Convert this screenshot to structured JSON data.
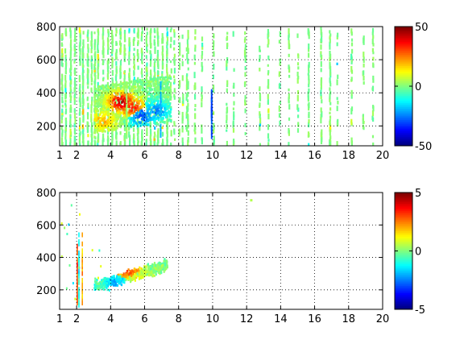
{
  "chart_data": [
    {
      "type": "heatmap",
      "title": "",
      "xlabel": "",
      "ylabel": "",
      "xlim": [
        1,
        20
      ],
      "ylim": [
        80,
        800
      ],
      "xticks": [
        "1",
        "2",
        "4",
        "6",
        "8",
        "10",
        "12",
        "14",
        "16",
        "18",
        "20"
      ],
      "xtick_values": [
        1,
        2,
        4,
        6,
        8,
        10,
        12,
        14,
        16,
        18,
        20
      ],
      "yticks": [
        "200",
        "400",
        "600",
        "800"
      ],
      "ytick_values": [
        200,
        400,
        600,
        800
      ],
      "grid": true,
      "colormap": "jet",
      "colorbar": {
        "min": -50,
        "max": 50,
        "ticks": [
          "50",
          "0",
          "-50"
        ],
        "tick_values": [
          50,
          0,
          -50
        ]
      },
      "features": [
        {
          "x": 4.6,
          "y": 350,
          "value": 45
        },
        {
          "x": 5.2,
          "y": 320,
          "value": 35
        },
        {
          "x": 5.8,
          "y": 265,
          "value": -30
        },
        {
          "x": 6.6,
          "y": 300,
          "value": -25
        },
        {
          "x": 3.5,
          "y": 240,
          "value": 20
        }
      ]
    },
    {
      "type": "heatmap",
      "title": "",
      "xlabel": "",
      "ylabel": "",
      "xlim": [
        1,
        20
      ],
      "ylim": [
        80,
        800
      ],
      "xticks": [
        "1",
        "2",
        "4",
        "6",
        "8",
        "10",
        "12",
        "14",
        "16",
        "18",
        "20"
      ],
      "xtick_values": [
        1,
        2,
        4,
        6,
        8,
        10,
        12,
        14,
        16,
        18,
        20
      ],
      "yticks": [
        "200",
        "400",
        "600",
        "800"
      ],
      "ytick_values": [
        200,
        400,
        600,
        800
      ],
      "grid": true,
      "colormap": "jet",
      "colorbar": {
        "min": -5,
        "max": 5,
        "ticks": [
          "5",
          "0",
          "-5"
        ],
        "tick_values": [
          5,
          0,
          -5
        ]
      },
      "features": [
        {
          "x": 4.6,
          "y": 340,
          "value": 4
        },
        {
          "x": 5.0,
          "y": 320,
          "value": 3
        },
        {
          "x": 5.5,
          "y": 280,
          "value": 1
        },
        {
          "x": 4.2,
          "y": 250,
          "value": -2
        },
        {
          "x": 2.2,
          "y": 200,
          "value": -3
        }
      ]
    }
  ]
}
